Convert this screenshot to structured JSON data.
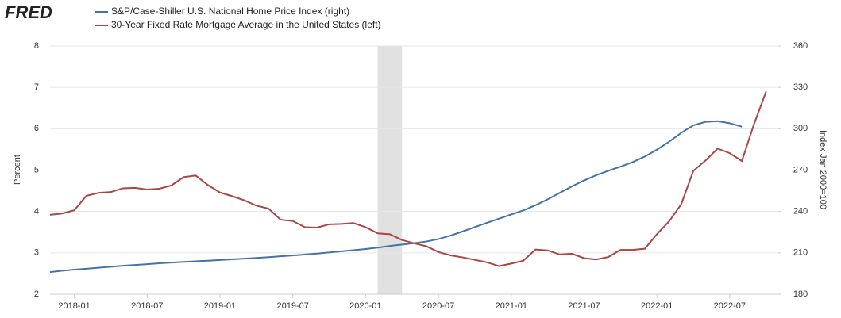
{
  "chart_data": {
    "type": "line",
    "logo": "FRED",
    "ylabel": "Percent",
    "y2label": "Index Jan 2000=100",
    "x": [
      "2017-11",
      "2017-12",
      "2018-01",
      "2018-02",
      "2018-03",
      "2018-04",
      "2018-05",
      "2018-06",
      "2018-07",
      "2018-08",
      "2018-09",
      "2018-10",
      "2018-11",
      "2018-12",
      "2019-01",
      "2019-02",
      "2019-03",
      "2019-04",
      "2019-05",
      "2019-06",
      "2019-07",
      "2019-08",
      "2019-09",
      "2019-10",
      "2019-11",
      "2019-12",
      "2020-01",
      "2020-02",
      "2020-03",
      "2020-04",
      "2020-05",
      "2020-06",
      "2020-07",
      "2020-08",
      "2020-09",
      "2020-10",
      "2020-11",
      "2020-12",
      "2021-01",
      "2021-02",
      "2021-03",
      "2021-04",
      "2021-05",
      "2021-06",
      "2021-07",
      "2021-08",
      "2021-09",
      "2021-10",
      "2021-11",
      "2021-12",
      "2022-01",
      "2022-02",
      "2022-03",
      "2022-04",
      "2022-05",
      "2022-06",
      "2022-07",
      "2022-08",
      "2022-09",
      "2022-10"
    ],
    "series": [
      {
        "name": "S&P/Case-Shiller U.S. National Home Price Index (right)",
        "color": "#4572a7",
        "axis": "y2",
        "values": [
          196.0,
          197.0,
          197.8,
          198.5,
          199.2,
          199.9,
          200.6,
          201.2,
          201.8,
          202.4,
          202.9,
          203.4,
          203.9,
          204.3,
          204.8,
          205.3,
          205.8,
          206.3,
          206.9,
          207.5,
          208.1,
          208.8,
          209.5,
          210.3,
          211.1,
          211.9,
          212.8,
          213.8,
          215.0,
          216.0,
          217.0,
          218.2,
          220.0,
          222.5,
          225.5,
          228.7,
          231.8,
          234.8,
          237.8,
          240.8,
          244.5,
          248.8,
          253.5,
          258.2,
          262.5,
          266.3,
          269.5,
          272.5,
          275.8,
          279.8,
          284.8,
          290.5,
          297.0,
          302.5,
          305.0,
          305.5,
          304.0,
          301.5,
          null,
          null
        ]
      },
      {
        "name": "30-Year Fixed Rate Mortgage Average in the United States (left)",
        "color": "#aa4643",
        "values": [
          3.92,
          3.95,
          4.03,
          4.38,
          4.45,
          4.47,
          4.56,
          4.57,
          4.53,
          4.55,
          4.63,
          4.83,
          4.87,
          4.64,
          4.46,
          4.37,
          4.27,
          4.14,
          4.07,
          3.8,
          3.77,
          3.62,
          3.61,
          3.69,
          3.7,
          3.72,
          3.62,
          3.47,
          3.45,
          3.31,
          3.23,
          3.16,
          3.02,
          2.94,
          2.89,
          2.83,
          2.77,
          2.68,
          2.74,
          2.81,
          3.08,
          3.06,
          2.96,
          2.98,
          2.87,
          2.84,
          2.9,
          3.07,
          3.07,
          3.1,
          3.45,
          3.76,
          4.17,
          4.98,
          5.23,
          5.52,
          5.41,
          5.22,
          6.11,
          6.9
        ]
      }
    ],
    "xlim": [
      "2017-11",
      "2022-11"
    ],
    "xticks": [
      "2018-01",
      "2018-07",
      "2019-01",
      "2019-07",
      "2020-01",
      "2020-07",
      "2021-01",
      "2021-07",
      "2022-01",
      "2022-07"
    ],
    "ylim": [
      2,
      8
    ],
    "yticks": [
      2,
      3,
      4,
      5,
      6,
      7,
      8
    ],
    "y2lim": [
      180,
      360
    ],
    "y2ticks": [
      180,
      210,
      240,
      270,
      300,
      330,
      360
    ],
    "grid": true,
    "shading": [
      {
        "start": "2020-02",
        "end": "2020-04",
        "color": "#e1e1e1"
      }
    ]
  }
}
